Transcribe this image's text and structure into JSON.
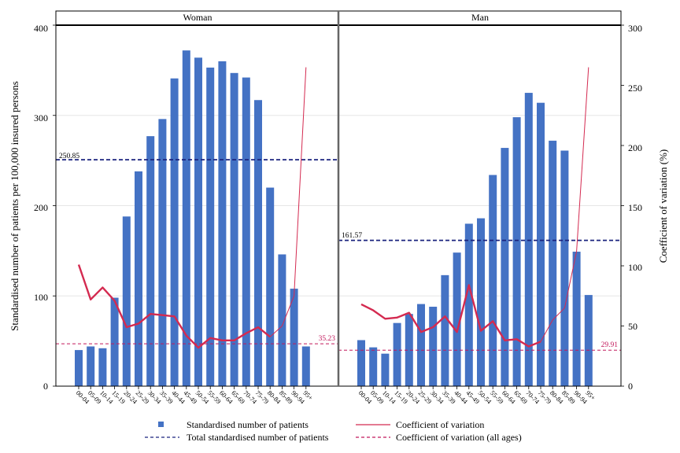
{
  "chart_data": {
    "type": "bar",
    "categories": [
      "00-04",
      "05-09",
      "10-14",
      "15-19",
      "20-24",
      "25-29",
      "30-34",
      "35-39",
      "40-44",
      "45-49",
      "50-54",
      "55-59",
      "60-64",
      "65-69",
      "70-74",
      "75-79",
      "80-84",
      "85-89",
      "90-94",
      "95+"
    ],
    "ylabel": "Standardised number of patients per 100,000 insured persons",
    "y2label": "Coefficient of variation (%)",
    "ylim": [
      0,
      400
    ],
    "y_ticks": [
      "0",
      "100",
      "200",
      "300",
      "400"
    ],
    "y2lim": [
      0,
      300
    ],
    "y2_ticks": [
      "0",
      "50",
      "100",
      "150",
      "200",
      "250",
      "300"
    ],
    "grid": true,
    "legend_position": "bottom",
    "panels": [
      {
        "title": "Woman",
        "bars": [
          40,
          44,
          42,
          98,
          188,
          238,
          277,
          296,
          341,
          372,
          364,
          353,
          360,
          347,
          342,
          317,
          220,
          146,
          108,
          44
        ],
        "cv": [
          101,
          72,
          82,
          71,
          49,
          52,
          60,
          59,
          58,
          42,
          32,
          40,
          38,
          38,
          44,
          49,
          41,
          null,
          null,
          null
        ],
        "cv_thin": [
          null,
          null,
          null,
          null,
          null,
          null,
          null,
          null,
          null,
          null,
          null,
          null,
          null,
          null,
          null,
          null,
          41,
          50,
          75,
          265
        ],
        "total": 250.85,
        "total_label": "250.85",
        "cv_all": 35.23,
        "cv_all_label": "35.23"
      },
      {
        "title": "Man",
        "bars": [
          51,
          43,
          36,
          70,
          80,
          91,
          88,
          123,
          148,
          180,
          186,
          234,
          264,
          298,
          325,
          314,
          272,
          261,
          149,
          101
        ],
        "cv": [
          68,
          63,
          56,
          57,
          61,
          45,
          49,
          58,
          45,
          84,
          46,
          54,
          38,
          39,
          33,
          37,
          null,
          null,
          null,
          null
        ],
        "cv_thin": [
          null,
          null,
          null,
          null,
          null,
          null,
          null,
          null,
          null,
          null,
          null,
          null,
          null,
          null,
          null,
          37,
          55,
          65,
          112,
          265
        ],
        "total": 161.57,
        "total_label": "161.57",
        "cv_all": 29.91,
        "cv_all_label": "29.91"
      }
    ],
    "legend": [
      {
        "label": "Standardised number of patients",
        "type": "bar"
      },
      {
        "label": "Coefficient of variation",
        "type": "line"
      },
      {
        "label": "Total standardised number of patients",
        "type": "dash-navy"
      },
      {
        "label": "Coefficient of variation (all ages)",
        "type": "dash-red"
      }
    ],
    "colors": {
      "bar": "#4472c4",
      "cv_line": "#d42a50",
      "total_line": "#1a237e",
      "cv_all_line": "#c2185b",
      "grid": "#e6e6e6"
    }
  }
}
